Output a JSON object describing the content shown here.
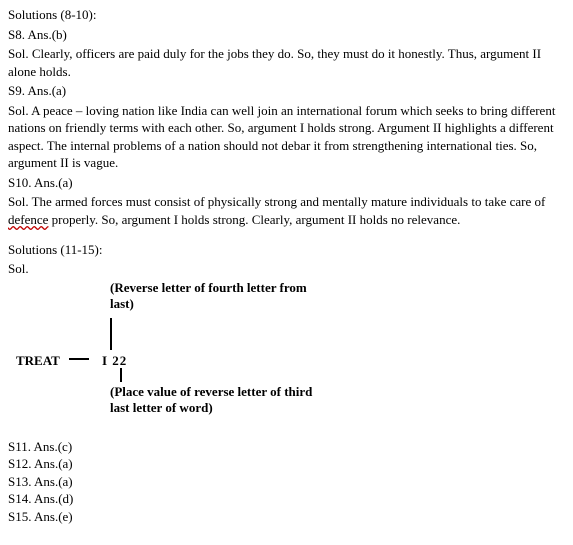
{
  "header1": "Solutions (8-10):",
  "s8": {
    "ans": "S8. Ans.(b)",
    "sol": "Sol. Clearly, officers are paid duly for the jobs they do. So, they must do it honestly. Thus, argument II alone holds."
  },
  "s9": {
    "ans": "S9. Ans.(a)",
    "sol": "Sol. A peace – loving nation like India can well join an international forum which seeks to bring different nations on friendly terms with each other. So, argument I holds strong. Argument II highlights a different aspect. The internal problems of a nation should not debar it from strengthening international ties. So, argument II is vague."
  },
  "s10": {
    "ans": "S10. Ans.(a)",
    "sol_pre": "Sol. The armed forces must consist of physically strong and mentally mature individuals to take care of ",
    "sol_sq": "defence",
    "sol_post": " properly. So, argument I holds strong. Clearly, argument II holds no relevance."
  },
  "header2": "Solutions (11-15):",
  "sol_label": "Sol.",
  "diagram": {
    "word": "TREAT",
    "code": "I  22",
    "top_text": "(Reverse letter of fourth letter from last)",
    "bottom_text": "(Place value of reverse letter of third last letter of word)"
  },
  "answers": [
    "S11. Ans.(c)",
    "S12. Ans.(a)",
    "S13. Ans.(a)",
    "S14. Ans.(d)",
    "S15. Ans.(e)"
  ]
}
